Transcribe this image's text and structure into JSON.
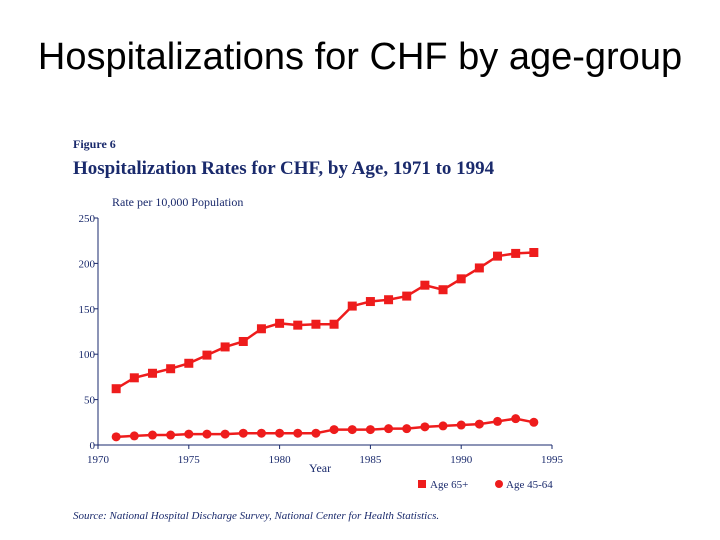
{
  "slide": {
    "title": "Hospitalizations for CHF by age-group"
  },
  "figure": {
    "label": "Figure 6",
    "source": "Source:  National Hospital Discharge Survey, National Center for Health Statistics."
  },
  "colors": {
    "series": "#ee1c1c",
    "text": "#1a2a6c",
    "axis": "#1a2a6c"
  },
  "chart_data": {
    "type": "line",
    "title": "Hospitalization Rates for CHF, by Age, 1971 to 1994",
    "xlabel": "Year",
    "ylabel": "Rate per 10,000 Population",
    "xlim": [
      1970,
      1995
    ],
    "ylim": [
      0,
      250
    ],
    "xticks": [
      1970,
      1975,
      1980,
      1985,
      1990,
      1995
    ],
    "yticks": [
      0,
      50,
      100,
      150,
      200,
      250
    ],
    "grid": false,
    "legend_position": "bottom-right",
    "x": [
      1971,
      1972,
      1973,
      1974,
      1975,
      1976,
      1977,
      1978,
      1979,
      1980,
      1981,
      1982,
      1983,
      1984,
      1985,
      1986,
      1987,
      1988,
      1989,
      1990,
      1991,
      1992,
      1993,
      1994
    ],
    "series": [
      {
        "name": "Age 65+",
        "marker": "square",
        "values": [
          62,
          74,
          79,
          84,
          90,
          99,
          108,
          114,
          128,
          134,
          132,
          133,
          133,
          153,
          158,
          160,
          164,
          176,
          171,
          183,
          195,
          208,
          211,
          212
        ]
      },
      {
        "name": "Age 45-64",
        "marker": "circle",
        "values": [
          9,
          10,
          11,
          11,
          12,
          12,
          12,
          13,
          13,
          13,
          13,
          13,
          17,
          17,
          17,
          18,
          18,
          20,
          21,
          22,
          23,
          26,
          29,
          25
        ]
      }
    ]
  }
}
